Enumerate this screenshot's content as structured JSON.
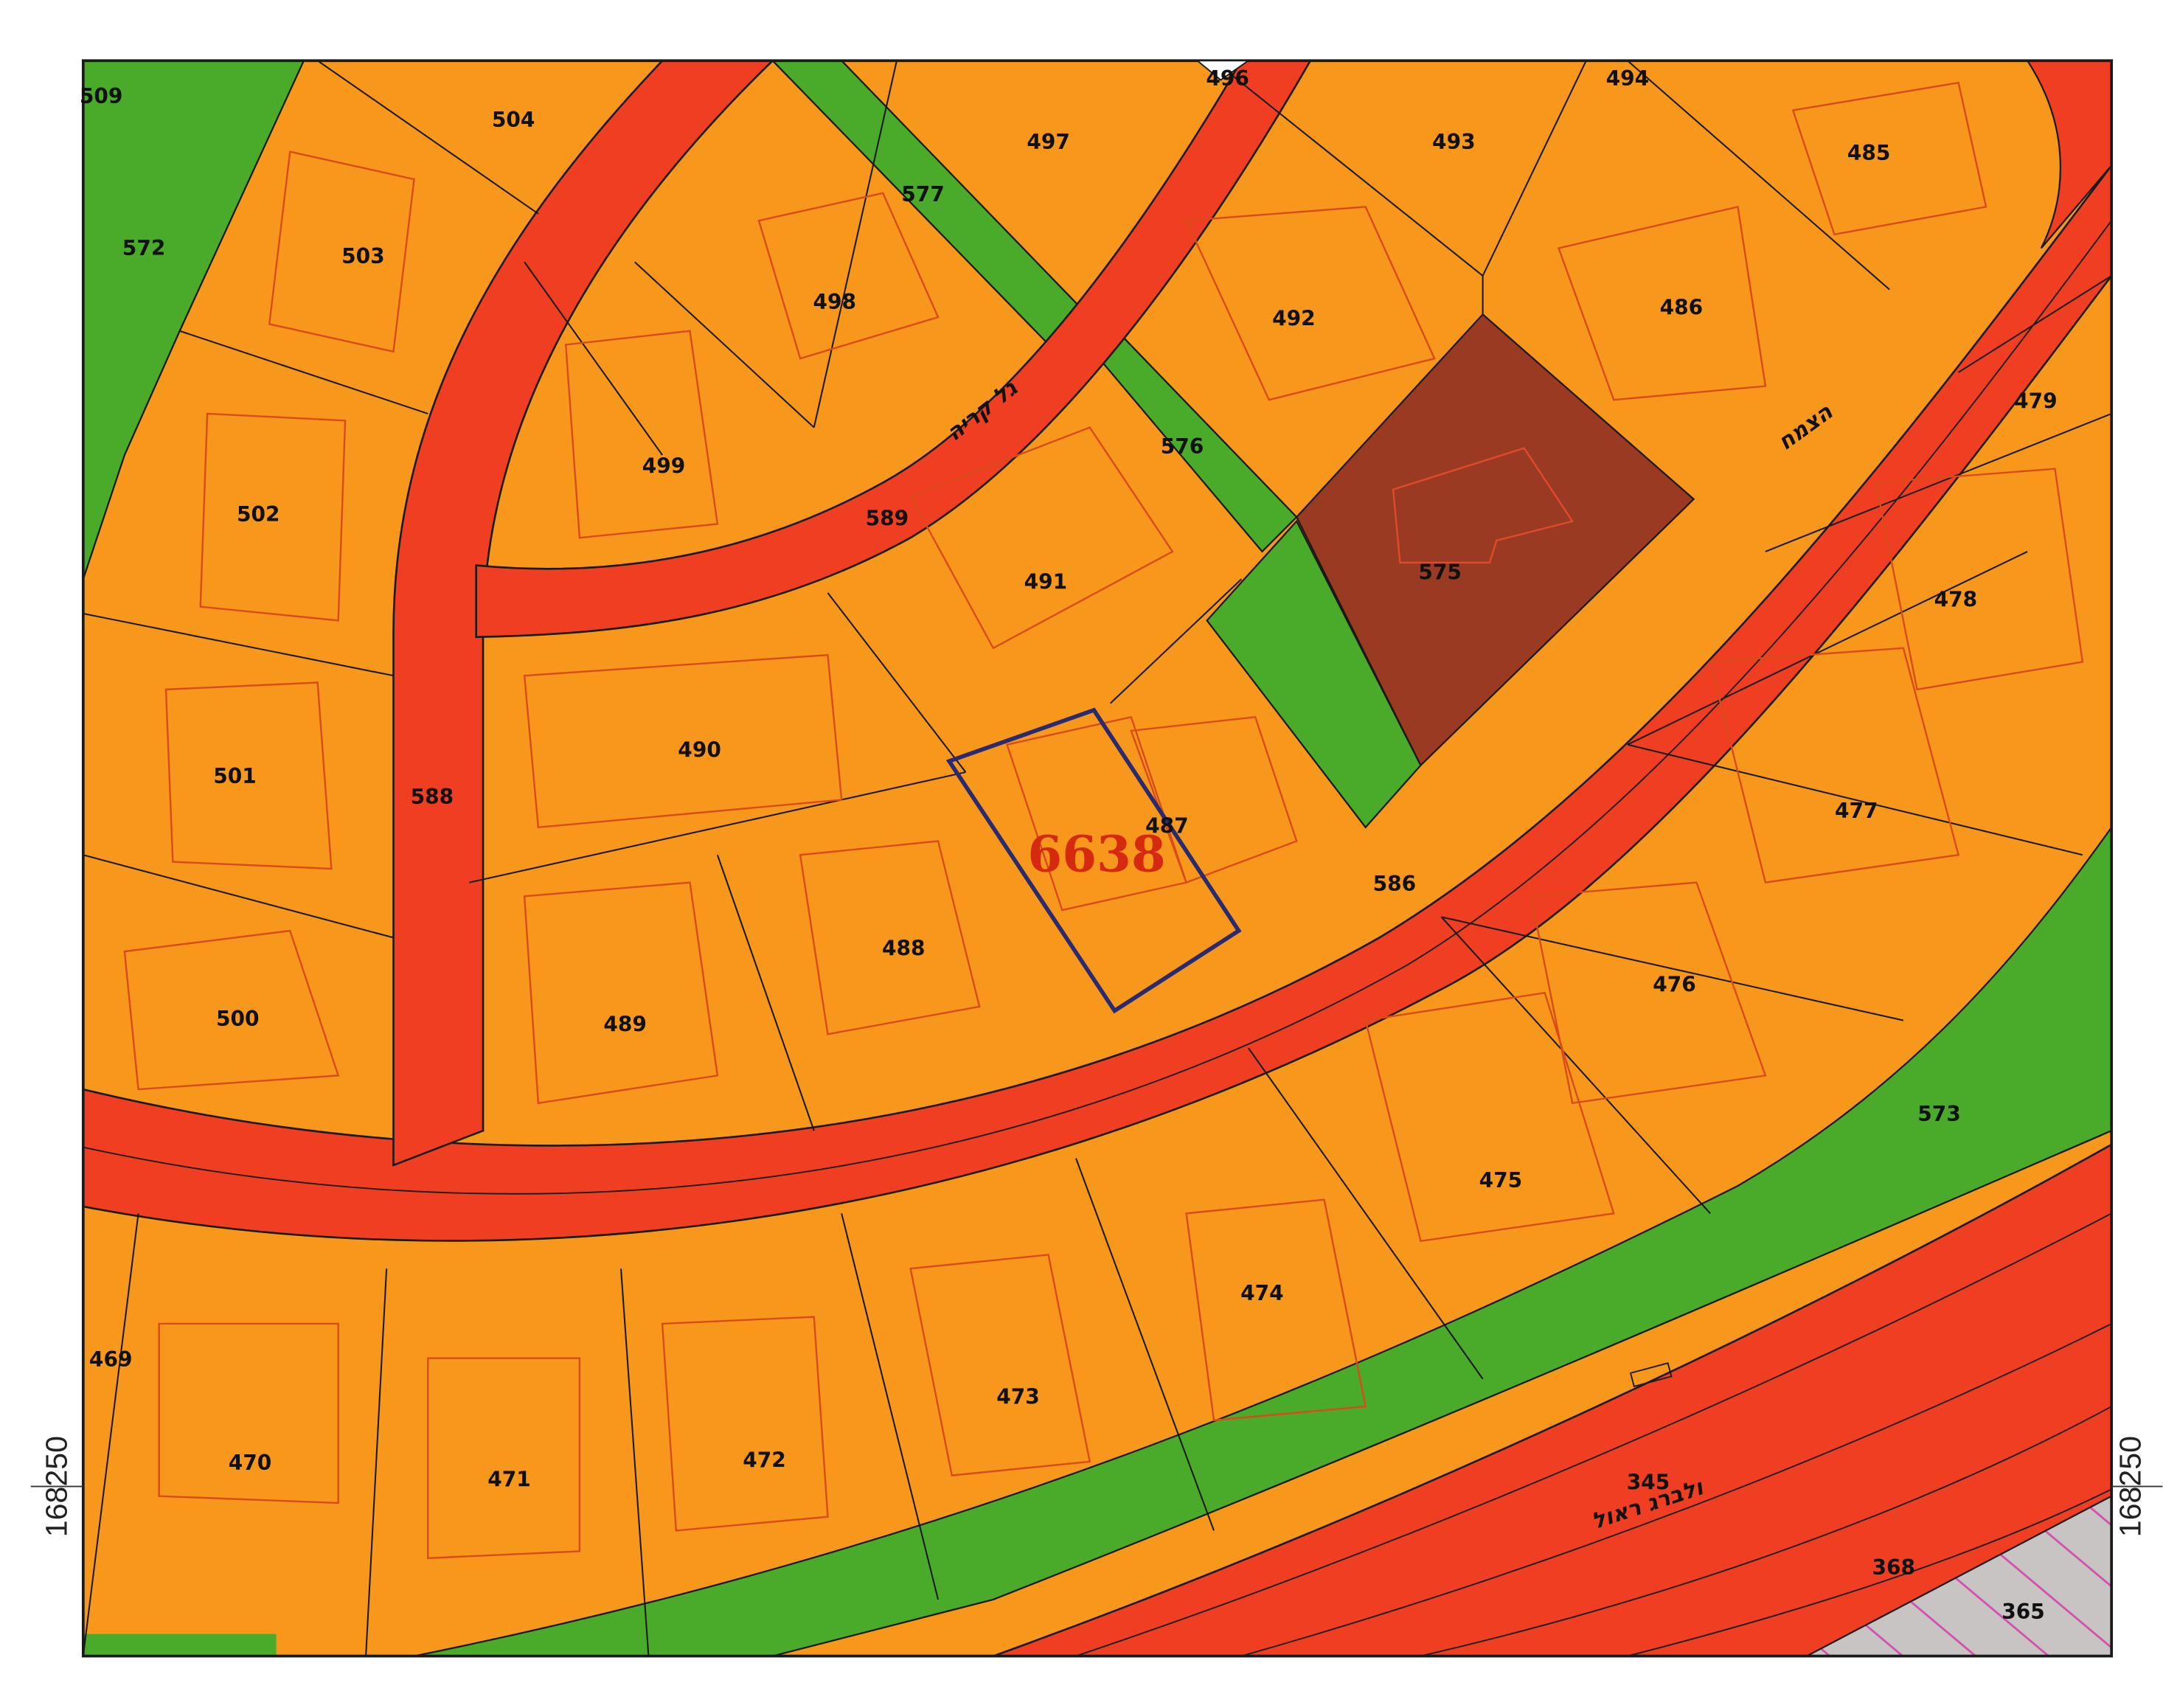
{
  "map": {
    "colors": {
      "residential": "#f7981c",
      "road": "#ef3e21",
      "green": "#4aab2a",
      "public": "#9b3a22",
      "outline": "#1a1a1a",
      "building": "#d94c1a",
      "highlight": "#2a2a6e",
      "hatch_bg": "#c9c4c4",
      "hatch": "#d44fb0"
    },
    "parcels": [
      "509",
      "504",
      "496",
      "497",
      "494",
      "493",
      "485",
      "572",
      "503",
      "577",
      "498",
      "492",
      "486",
      "499",
      "576",
      "479",
      "502",
      "589",
      "491",
      "575",
      "478",
      "501",
      "588",
      "490",
      "487",
      "477",
      "500",
      "489",
      "488",
      "586",
      "476",
      "573",
      "475",
      "474",
      "469",
      "473",
      "470",
      "471",
      "472",
      "345",
      "368",
      "365"
    ],
    "highlighted_block": "6638",
    "streets": [
      "גל קריה",
      "הצמח",
      "ולברג ראול"
    ],
    "coordinates": {
      "left": "168250",
      "right": "168250"
    }
  }
}
